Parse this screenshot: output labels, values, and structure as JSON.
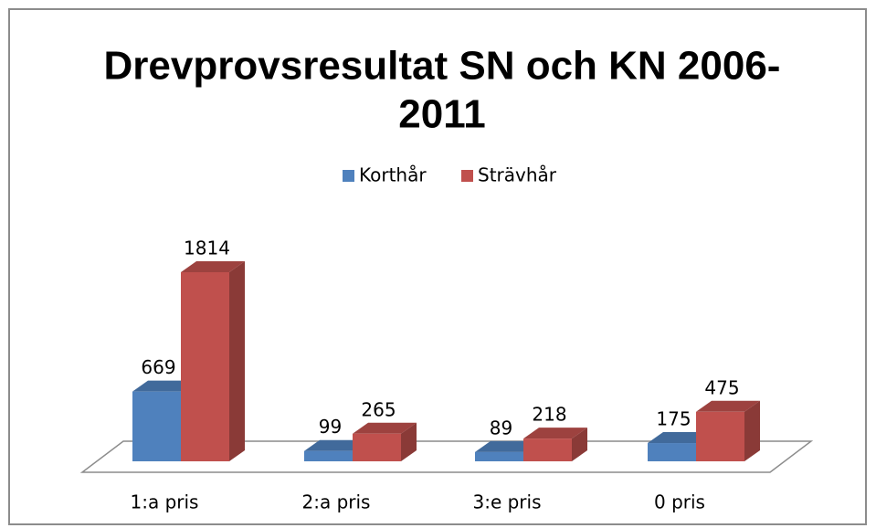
{
  "chart_data": {
    "type": "bar3d",
    "title": [
      "Drevprovsresultat SN och KN 2006-",
      "2011"
    ],
    "categories": [
      "1:a pris",
      "2:a pris",
      "3:e pris",
      "0 pris"
    ],
    "series": [
      {
        "name": "Korthår",
        "color": "#4f81bd",
        "values": [
          669,
          99,
          89,
          175
        ]
      },
      {
        "name": "Strävhår",
        "color": "#c0504d",
        "values": [
          1814,
          265,
          218,
          475
        ]
      }
    ],
    "legend": "top"
  }
}
